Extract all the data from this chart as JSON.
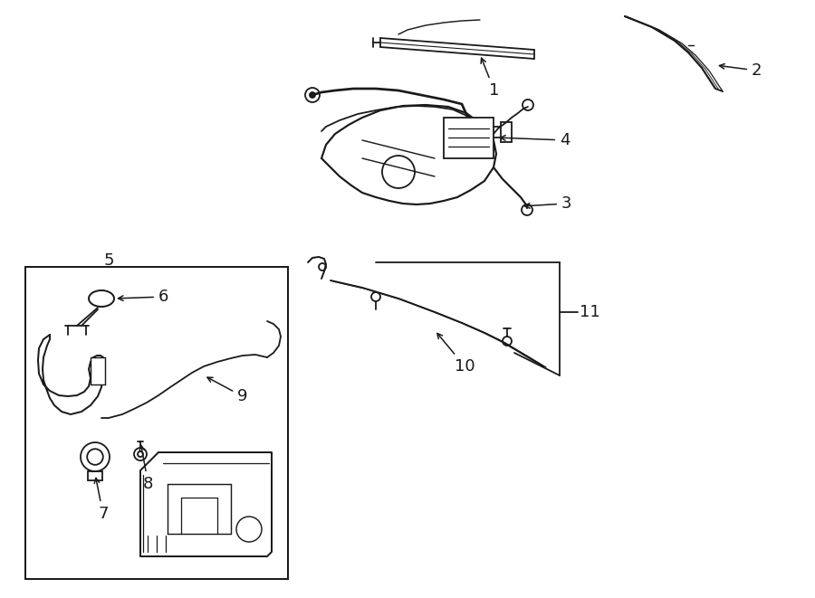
{
  "bg_color": "#ffffff",
  "lc": "#1a1a1a",
  "figsize": [
    9.0,
    6.61
  ],
  "dpi": 100,
  "lw": 1.3
}
